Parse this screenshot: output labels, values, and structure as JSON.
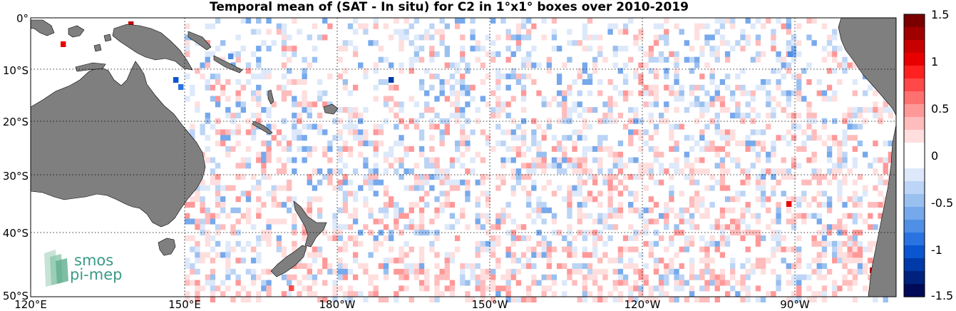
{
  "title": "Temporal mean of (SAT - In situ) for C2 in 1°x1° boxes over 2010-2019",
  "map": {
    "lat_labels": [
      "0°",
      "10°S",
      "20°S",
      "30°S",
      "40°S",
      "50°S"
    ],
    "lon_labels": [
      "120°E",
      "150°E",
      "180°W",
      "150°W",
      "120°W",
      "90°W"
    ],
    "land_color": "#7f7f7f",
    "grid_style": "dotted"
  },
  "colorbar": {
    "tick_labels": [
      "1.5",
      "1",
      "0.5",
      "0",
      "-0.5",
      "-1",
      "-1.5"
    ],
    "min": -1.5,
    "max": 1.5,
    "colors_top_to_bottom": [
      "#7a0000",
      "#a00000",
      "#c80000",
      "#e80000",
      "#ff2020",
      "#ff4848",
      "#ff7070",
      "#ff9898",
      "#ffbcbc",
      "#ffdede",
      "#ffffff",
      "#ffffff",
      "#dde9fa",
      "#bcd4f5",
      "#9ac0f0",
      "#76a8ec",
      "#508fe6",
      "#2a73e0",
      "#0a55d0",
      "#003aa8",
      "#00227e",
      "#000a56"
    ]
  },
  "logo": {
    "line1": "smos",
    "line2": "pi-mep"
  }
}
